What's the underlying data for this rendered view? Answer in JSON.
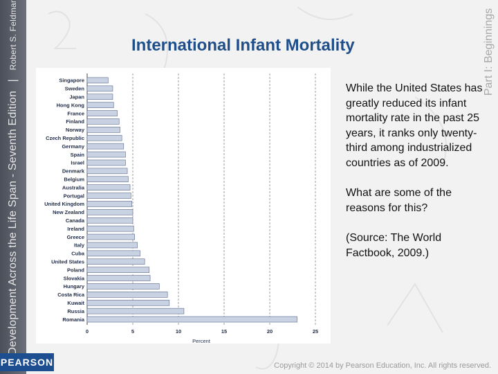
{
  "slide": {
    "title": "International Infant Mortality",
    "book_title": "Development Across the Life Span - Seventh Edition",
    "author": "Robert S. Feldman",
    "part_label": "Part I: Beginnings",
    "publisher_logo": "PEARSON",
    "copyright": "Copyright © 2014 by Pearson Education, Inc. All rights reserved."
  },
  "body": {
    "paragraphs": [
      "While the United States has greatly reduced its infant mortality rate in the past 25 years, it ranks only twenty-third among industrialized countries as of 2009.",
      "What are some of the reasons for this?",
      "(Source: The World Factbook, 2009.)"
    ]
  },
  "chart_data": {
    "type": "bar",
    "orientation": "horizontal",
    "categories": [
      "Singapore",
      "Sweden",
      "Japan",
      "Hong Kong",
      "France",
      "Finland",
      "Norway",
      "Czech Republic",
      "Germany",
      "Spain",
      "Israel",
      "Denmark",
      "Belgium",
      "Australia",
      "Portugal",
      "United Kingdom",
      "New Zealand",
      "Canada",
      "Ireland",
      "Greece",
      "Italy",
      "Cuba",
      "United States",
      "Poland",
      "Slovakia",
      "Hungary",
      "Costa Rica",
      "Kuwait",
      "Russia",
      "Romania"
    ],
    "values": [
      2.3,
      2.8,
      2.8,
      2.9,
      3.3,
      3.5,
      3.6,
      3.8,
      4.0,
      4.2,
      4.2,
      4.4,
      4.5,
      4.7,
      4.8,
      4.9,
      5.0,
      5.0,
      5.1,
      5.2,
      5.5,
      5.8,
      6.3,
      6.8,
      6.9,
      7.9,
      8.8,
      9.0,
      10.6,
      23.0
    ],
    "xticks": [
      0,
      5,
      10,
      15,
      20,
      25
    ],
    "xlabel": "Percent",
    "xlim": [
      0,
      25
    ],
    "grid": "vertical-dashed",
    "bar_color": "#c9d2e3",
    "bar_edge_color": "#5a6a8a"
  },
  "colors": {
    "title": "#1f4f8a",
    "sidebar": "#4a4f5a",
    "pearson_blue": "#1d4e8f"
  }
}
